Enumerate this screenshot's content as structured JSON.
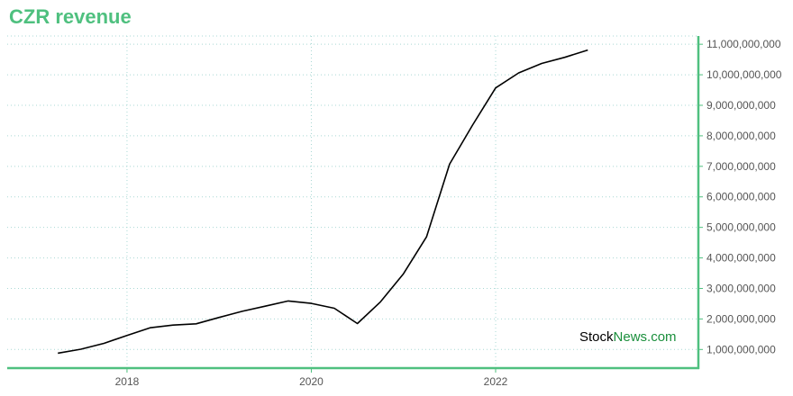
{
  "chart_data": {
    "type": "line",
    "title": "CZR revenue",
    "xlabel": "",
    "ylabel": "",
    "x_tick_labels": [
      "2018",
      "2020",
      "2022"
    ],
    "x_ticks": [
      2018,
      2020,
      2022
    ],
    "y_tick_labels": [
      "1,000,000,000",
      "2,000,000,000",
      "3,000,000,000",
      "4,000,000,000",
      "5,000,000,000",
      "6,000,000,000",
      "7,000,000,000",
      "8,000,000,000",
      "9,000,000,000",
      "10,000,000,000",
      "11,000,000,000"
    ],
    "y_ticks": [
      1000000000,
      2000000000,
      3000000000,
      4000000000,
      5000000000,
      6000000000,
      7000000000,
      8000000000,
      9000000000,
      10000000000,
      11000000000
    ],
    "xlim": [
      2016.7,
      2024.2
    ],
    "ylim": [
      390000000,
      11270000000
    ],
    "grid": true,
    "series": [
      {
        "x": [
          2017.25,
          2017.5,
          2017.75,
          2018.0,
          2018.25,
          2018.5,
          2018.75,
          2019.0,
          2019.25,
          2019.5,
          2019.75,
          2020.0,
          2020.25,
          2020.5,
          2020.75,
          2021.0,
          2021.25,
          2021.5,
          2021.75,
          2022.0,
          2022.25,
          2022.5,
          2022.75,
          2023.0
        ],
        "values": [
          880000000,
          1010000000,
          1200000000,
          1460000000,
          1710000000,
          1800000000,
          1840000000,
          2050000000,
          2250000000,
          2420000000,
          2590000000,
          2510000000,
          2350000000,
          1850000000,
          2560000000,
          3480000000,
          4690000000,
          7070000000,
          8350000000,
          9570000000,
          10060000000,
          10370000000,
          10570000000,
          10810000000
        ]
      }
    ],
    "colors": {
      "title": "#4fc07f",
      "axis": "#4fc07f",
      "grid": "#a9d8d4",
      "line": "#000000",
      "tick_label": "#555555"
    }
  },
  "watermark": {
    "part1": "Stock",
    "part2": "News",
    "part3": ".com",
    "color_dark": "#000000",
    "color_green": "#1a8f3c"
  }
}
